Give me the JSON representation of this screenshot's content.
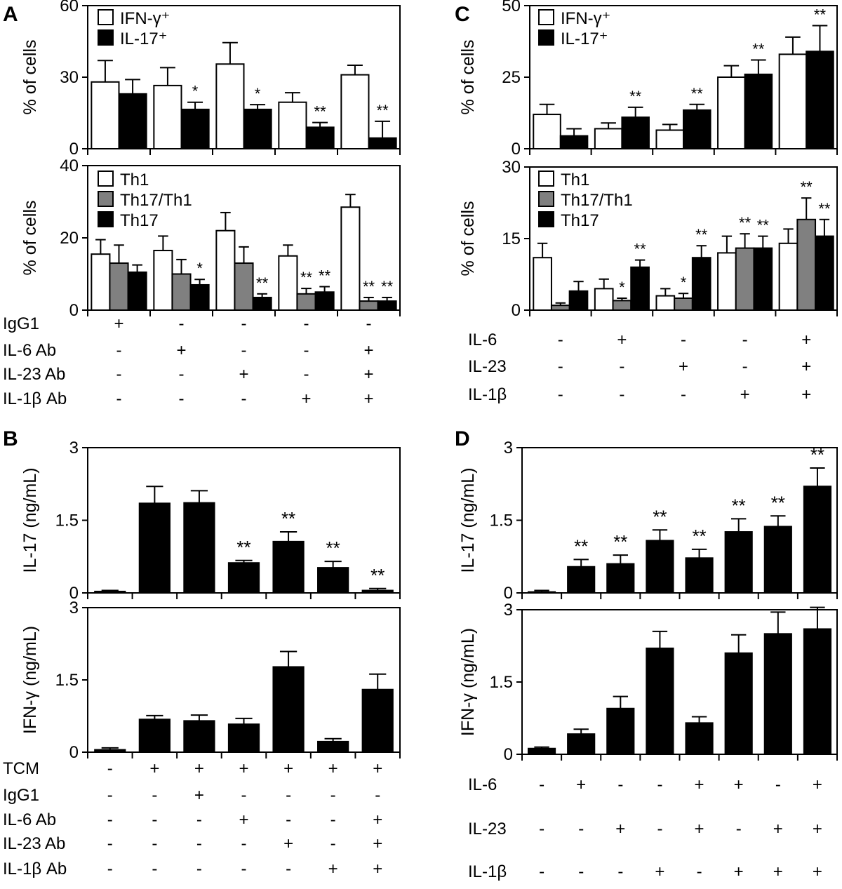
{
  "panels": [
    {
      "letter": "A",
      "legend_top": [
        {
          "label": "IFN-γ⁺",
          "color": "#ffffff"
        },
        {
          "label": "IL-17⁺",
          "color": "#000000"
        }
      ],
      "legend_bottom": [
        {
          "label": "Th1",
          "color": "#ffffff"
        },
        {
          "label": "Th17/Th1",
          "color": "#808080"
        },
        {
          "label": "Th17",
          "color": "#000000"
        }
      ],
      "conditions": [
        {
          "label": "IgG1",
          "signs": [
            "+",
            "-",
            "-",
            "-",
            "-"
          ]
        },
        {
          "label": "IL-6  Ab",
          "signs": [
            "-",
            "+",
            "-",
            "-",
            "+"
          ]
        },
        {
          "label": "IL-23 Ab",
          "signs": [
            "-",
            "-",
            "+",
            "-",
            "+"
          ]
        },
        {
          "label": "IL-1β Ab",
          "signs": [
            "-",
            "-",
            "-",
            "+",
            "+"
          ]
        }
      ]
    },
    {
      "letter": "B",
      "conditions": [
        {
          "label": "TCM",
          "signs": [
            "-",
            "+",
            "+",
            "+",
            "+",
            "+",
            "+"
          ]
        },
        {
          "label": "IgG1",
          "signs": [
            "-",
            "-",
            "+",
            "-",
            "-",
            "-",
            "-"
          ]
        },
        {
          "label": "IL-6  Ab",
          "signs": [
            "-",
            "-",
            "-",
            "+",
            "-",
            "-",
            "+"
          ]
        },
        {
          "label": "IL-23 Ab",
          "signs": [
            "-",
            "-",
            "-",
            "-",
            "+",
            "-",
            "+"
          ]
        },
        {
          "label": "IL-1β Ab",
          "signs": [
            "-",
            "-",
            "-",
            "-",
            "-",
            "+",
            "+"
          ]
        }
      ]
    },
    {
      "letter": "C",
      "legend_top": [
        {
          "label": "IFN-γ⁺",
          "color": "#ffffff"
        },
        {
          "label": "IL-17⁺",
          "color": "#000000"
        }
      ],
      "legend_bottom": [
        {
          "label": "Th1",
          "color": "#ffffff"
        },
        {
          "label": "Th17/Th1",
          "color": "#808080"
        },
        {
          "label": "Th17",
          "color": "#000000"
        }
      ],
      "conditions": [
        {
          "label": "IL-6",
          "signs": [
            "-",
            "+",
            "-",
            "-",
            "+"
          ]
        },
        {
          "label": "IL-23",
          "signs": [
            "-",
            "-",
            "+",
            "-",
            "+"
          ]
        },
        {
          "label": "IL-1β",
          "signs": [
            "-",
            "-",
            "-",
            "+",
            "+"
          ]
        }
      ]
    },
    {
      "letter": "D",
      "conditions": [
        {
          "label": "IL-6",
          "signs": [
            "-",
            "+",
            "-",
            "-",
            "+",
            "+",
            "-",
            "+"
          ]
        },
        {
          "label": "IL-23",
          "signs": [
            "-",
            "-",
            "+",
            "-",
            "+",
            "-",
            "+",
            "+"
          ]
        },
        {
          "label": "IL-1β",
          "signs": [
            "-",
            "-",
            "-",
            "+",
            "-",
            "+",
            "+",
            "+"
          ]
        }
      ]
    }
  ],
  "chart_data": [
    {
      "id": "A-top",
      "type": "bar",
      "ylabel": "% of cells",
      "ylim": [
        0,
        60
      ],
      "yticks": [
        "0",
        "30",
        "60"
      ],
      "tick_values": [
        0,
        30,
        60
      ],
      "series": [
        {
          "name": "IFN-γ⁺",
          "color": "#ffffff",
          "values": [
            28,
            26.5,
            35.5,
            19.5,
            31
          ],
          "errors": [
            9,
            7.5,
            9,
            4,
            4
          ],
          "sig": [
            "",
            "",
            "",
            "",
            ""
          ]
        },
        {
          "name": "IL-17⁺",
          "color": "#000000",
          "values": [
            23,
            16.5,
            16.5,
            9,
            4.5
          ],
          "errors": [
            6,
            3,
            2,
            2,
            7
          ],
          "sig": [
            "",
            "*",
            "*",
            "**",
            "**"
          ]
        }
      ]
    },
    {
      "id": "A-bottom",
      "type": "bar",
      "ylabel": "% of cells",
      "ylim": [
        0,
        40
      ],
      "yticks": [
        "0",
        "20",
        "40"
      ],
      "tick_values": [
        0,
        20,
        40
      ],
      "series": [
        {
          "name": "Th1",
          "color": "#ffffff",
          "values": [
            15.5,
            16.5,
            22,
            15,
            28.5
          ],
          "errors": [
            4,
            4,
            5,
            3,
            3.5
          ],
          "sig": [
            "",
            "",
            "",
            "",
            ""
          ]
        },
        {
          "name": "Th17/Th1",
          "color": "#808080",
          "values": [
            13,
            10,
            13,
            4.5,
            2.5
          ],
          "errors": [
            5,
            4,
            4.5,
            1.5,
            1
          ],
          "sig": [
            "",
            "",
            "",
            "**",
            "**"
          ]
        },
        {
          "name": "Th17",
          "color": "#000000",
          "values": [
            10.5,
            7,
            3.5,
            5,
            2.5
          ],
          "errors": [
            2,
            1.5,
            1,
            1.5,
            1
          ],
          "sig": [
            "",
            "*",
            "**",
            "**",
            "**"
          ]
        }
      ]
    },
    {
      "id": "B-top",
      "type": "bar",
      "ylabel": "IL-17 (ng/mL)",
      "ylim": [
        0,
        3
      ],
      "yticks": [
        "0",
        "1.5",
        "3"
      ],
      "tick_values": [
        0,
        1.5,
        3
      ],
      "series": [
        {
          "name": "",
          "color": "#000000",
          "values": [
            0.03,
            1.85,
            1.86,
            0.62,
            1.06,
            0.52,
            0.05
          ],
          "errors": [
            0.02,
            0.35,
            0.25,
            0.05,
            0.2,
            0.13,
            0.04
          ],
          "sig": [
            "",
            "",
            "",
            "**",
            "**",
            "**",
            "**"
          ]
        }
      ]
    },
    {
      "id": "B-bottom",
      "type": "bar",
      "ylabel": "IFN-γ (ng/mL)",
      "ylim": [
        0,
        3
      ],
      "yticks": [
        "0",
        "1.5",
        "3"
      ],
      "tick_values": [
        0,
        1.5,
        3
      ],
      "series": [
        {
          "name": "",
          "color": "#000000",
          "values": [
            0.05,
            0.68,
            0.65,
            0.58,
            1.77,
            0.22,
            1.3
          ],
          "errors": [
            0.04,
            0.08,
            0.12,
            0.12,
            0.32,
            0.06,
            0.32
          ],
          "sig": [
            "",
            "",
            "",
            "",
            "",
            "",
            ""
          ]
        }
      ]
    },
    {
      "id": "C-top",
      "type": "bar",
      "ylabel": "% of cells",
      "ylim": [
        0,
        50
      ],
      "yticks": [
        "0",
        "25",
        "50"
      ],
      "tick_values": [
        0,
        25,
        50
      ],
      "series": [
        {
          "name": "IFN-γ⁺",
          "color": "#ffffff",
          "values": [
            12,
            7,
            6.5,
            25,
            33
          ],
          "errors": [
            3.5,
            2,
            2,
            4,
            6
          ],
          "sig": [
            "",
            "",
            "",
            "",
            ""
          ]
        },
        {
          "name": "IL-17⁺",
          "color": "#000000",
          "values": [
            4.5,
            11,
            13.5,
            26,
            34
          ],
          "errors": [
            2.5,
            3.5,
            2,
            5,
            9
          ],
          "sig": [
            "",
            "**",
            "**",
            "**",
            "**"
          ]
        }
      ]
    },
    {
      "id": "C-bottom",
      "type": "bar",
      "ylabel": "% of cells",
      "ylim": [
        0,
        30
      ],
      "yticks": [
        "0",
        "15",
        "30"
      ],
      "tick_values": [
        0,
        15,
        30
      ],
      "series": [
        {
          "name": "Th1",
          "color": "#ffffff",
          "values": [
            11,
            4.5,
            3,
            12,
            14
          ],
          "errors": [
            3,
            2,
            1.5,
            3.5,
            3
          ],
          "sig": [
            "",
            "",
            "",
            "",
            ""
          ]
        },
        {
          "name": "Th17/Th1",
          "color": "#808080",
          "values": [
            1,
            2,
            2.5,
            13,
            19
          ],
          "errors": [
            0.5,
            0.5,
            1,
            3,
            4.5
          ],
          "sig": [
            "",
            "*",
            "*",
            "**",
            "**"
          ]
        },
        {
          "name": "Th17",
          "color": "#000000",
          "values": [
            4,
            9,
            11,
            13,
            15.5
          ],
          "errors": [
            2,
            1.5,
            2.5,
            2.5,
            3.5
          ],
          "sig": [
            "",
            "**",
            "**",
            "**",
            "**"
          ]
        }
      ]
    },
    {
      "id": "D-top",
      "type": "bar",
      "ylabel": "IL-17 (ng/mL)",
      "ylim": [
        0,
        3
      ],
      "yticks": [
        "0",
        "1.5",
        "3"
      ],
      "tick_values": [
        0,
        1.5,
        3
      ],
      "series": [
        {
          "name": "",
          "color": "#000000",
          "values": [
            0.02,
            0.54,
            0.6,
            1.08,
            0.72,
            1.26,
            1.37,
            2.2
          ],
          "errors": [
            0.03,
            0.15,
            0.18,
            0.22,
            0.18,
            0.27,
            0.22,
            0.38
          ],
          "sig": [
            "",
            "**",
            "**",
            "**",
            "**",
            "**",
            "**",
            "**"
          ]
        }
      ]
    },
    {
      "id": "D-bottom",
      "type": "bar",
      "ylabel": "IFN-γ (ng/mL)",
      "ylim": [
        0,
        3
      ],
      "yticks": [
        "0",
        "1.5",
        "3"
      ],
      "tick_values": [
        0,
        1.5,
        3
      ],
      "series": [
        {
          "name": "",
          "color": "#000000",
          "values": [
            0.12,
            0.42,
            0.95,
            2.2,
            0.65,
            2.1,
            2.5,
            2.6
          ],
          "errors": [
            0.03,
            0.1,
            0.25,
            0.35,
            0.13,
            0.38,
            0.45,
            0.45
          ],
          "sig": [
            "",
            "",
            "",
            "",
            "",
            "",
            "",
            ""
          ]
        }
      ]
    }
  ]
}
